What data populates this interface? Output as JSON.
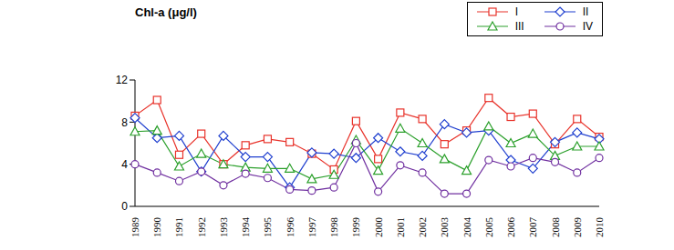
{
  "chart_data": {
    "type": "line",
    "y_label": "Chl-a (μg/l)",
    "categories": [
      "1989",
      "1990",
      "1991",
      "1992",
      "1993",
      "1994",
      "1995",
      "1996",
      "1997",
      "1998",
      "1999",
      "2000",
      "2001",
      "2002",
      "2003",
      "2004",
      "2005",
      "2006",
      "2007",
      "2008",
      "2009",
      "2010"
    ],
    "series": [
      {
        "name": "I",
        "color": "#e8332b",
        "marker": "square",
        "values": [
          8.6,
          10.1,
          4.9,
          6.9,
          4.0,
          5.8,
          6.4,
          6.1,
          5.0,
          3.5,
          8.1,
          4.5,
          8.9,
          8.3,
          5.9,
          7.2,
          10.3,
          8.5,
          8.8,
          5.9,
          8.3,
          6.6
        ]
      },
      {
        "name": "II",
        "color": "#1f3fcf",
        "marker": "diamond",
        "values": [
          8.4,
          6.5,
          6.7,
          3.3,
          6.7,
          4.7,
          4.7,
          1.8,
          5.1,
          5.0,
          4.6,
          6.5,
          5.2,
          4.8,
          7.8,
          7.0,
          7.2,
          4.4,
          3.6,
          6.1,
          7.0,
          6.4
        ]
      },
      {
        "name": "III",
        "color": "#2ca02c",
        "marker": "triangle",
        "values": [
          7.1,
          7.2,
          3.8,
          5.0,
          4.0,
          3.7,
          3.6,
          3.6,
          2.6,
          3.0,
          6.3,
          3.4,
          7.4,
          6.0,
          4.5,
          3.4,
          7.6,
          6.0,
          6.9,
          4.8,
          5.7,
          5.7
        ]
      },
      {
        "name": "IV",
        "color": "#7030a0",
        "marker": "circle",
        "values": [
          4.0,
          3.2,
          2.4,
          3.3,
          2.0,
          3.1,
          2.7,
          1.6,
          1.5,
          1.8,
          6.0,
          1.4,
          3.9,
          3.2,
          1.2,
          1.2,
          4.4,
          3.8,
          4.6,
          4.2,
          3.2,
          4.6
        ]
      }
    ],
    "ylim": [
      0,
      12
    ],
    "yticks": [
      0,
      4,
      8,
      12
    ],
    "grid": false,
    "legend": "upper right"
  }
}
